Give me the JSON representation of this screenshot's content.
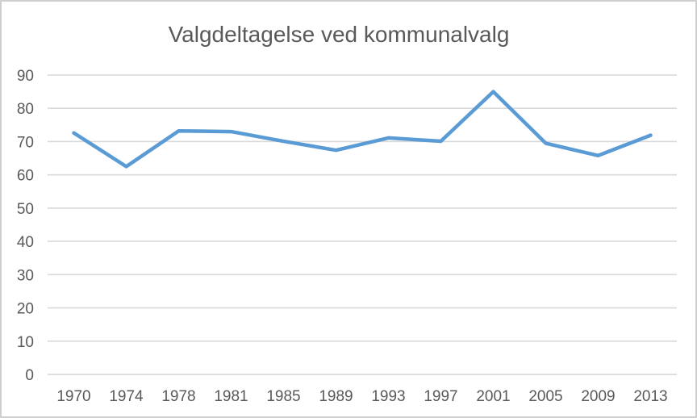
{
  "chart_data": {
    "type": "line",
    "title": "Valgdeltagelse ved kommunalvalg",
    "categories": [
      "1970",
      "1974",
      "1978",
      "1981",
      "1985",
      "1989",
      "1993",
      "1997",
      "2001",
      "2005",
      "2009",
      "2013"
    ],
    "values": [
      72.6,
      62.5,
      73.2,
      73.0,
      70.1,
      67.4,
      71.1,
      70.1,
      85.0,
      69.5,
      65.8,
      71.9
    ],
    "yticks": [
      0,
      10,
      20,
      30,
      40,
      50,
      60,
      70,
      80,
      90
    ],
    "ylim": [
      0,
      90
    ],
    "xlabel": "",
    "ylabel": "",
    "legend": "none",
    "grid": "horizontal",
    "colors": {
      "line": "#5b9bd5",
      "gridline": "#d9d9d9",
      "axis_line": "#d4d4d4",
      "tick_label": "#595959",
      "title": "#595959",
      "background": "#ffffff",
      "chart_border": "#cfcfcf"
    }
  }
}
